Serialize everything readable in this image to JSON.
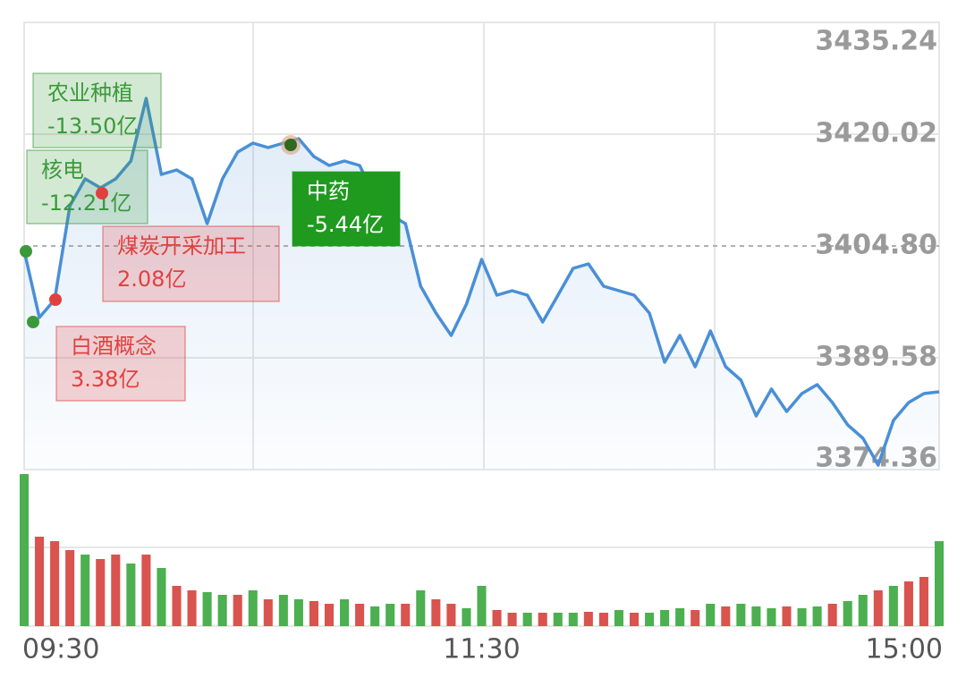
{
  "chart_data": [
    {
      "type": "line",
      "categories": [
        "09:30",
        null,
        null,
        null,
        null,
        null,
        null,
        null,
        null,
        null,
        null,
        null,
        null,
        null,
        null,
        null,
        null,
        null,
        null,
        null,
        null,
        null,
        null,
        null,
        null,
        null,
        null,
        null,
        null,
        null,
        "11:30",
        null,
        null,
        null,
        null,
        null,
        null,
        null,
        null,
        null,
        null,
        null,
        null,
        null,
        null,
        null,
        null,
        null,
        null,
        null,
        null,
        null,
        null,
        null,
        null,
        null,
        null,
        null,
        null,
        null,
        "15:00"
      ],
      "values": [
        3404.19,
        3395.06,
        3397.49,
        3410.28,
        3413.93,
        3412.71,
        3413.93,
        3416.37,
        3424.89,
        3414.54,
        3415.15,
        3413.93,
        3407.84,
        3413.93,
        3417.58,
        3418.8,
        3418.19,
        3418.8,
        3419.41,
        3416.98,
        3415.76,
        3416.37,
        3415.76,
        3411.5,
        3409.06,
        3407.84,
        3399.32,
        3395.67,
        3392.62,
        3396.89,
        3402.97,
        3398.1,
        3398.71,
        3398.1,
        3394.45,
        3398.1,
        3401.76,
        3402.36,
        3399.32,
        3398.71,
        3398.1,
        3395.67,
        3388.97,
        3392.62,
        3388.36,
        3393.23,
        3388.36,
        3386.54,
        3381.67,
        3385.32,
        3382.27,
        3384.71,
        3385.93,
        3383.49,
        3380.45,
        3378.62,
        3374.97,
        3381.06,
        3383.49,
        3384.71,
        3384.95
      ],
      "color": "#4a8fd6",
      "ylim": [
        3374.36,
        3435.24
      ],
      "yticks": [
        3374.36,
        3389.58,
        {
          "value": 3404.8,
          "label": "3404.80"
        },
        3420.02,
        3435.24
      ],
      "grid": true,
      "annotations": [
        {
          "label": "农业种植",
          "text": "-13.50亿",
          "color": "#3a9a3a"
        },
        {
          "label": "核电",
          "text": "-12.21亿",
          "color": "#3a9a3a"
        },
        {
          "label": "煤炭开采加工",
          "text": "2.08亿",
          "color": "#e0413f"
        },
        {
          "label": "白酒概念",
          "text": "3.38亿",
          "color": "#e0413f"
        },
        {
          "label": "中药",
          "text": "-5.44亿",
          "color": "#1f9a1f"
        }
      ]
    },
    {
      "type": "bar",
      "values": [
        170,
        100,
        95,
        85,
        80,
        75,
        80,
        70,
        80,
        65,
        45,
        40,
        38,
        35,
        35,
        40,
        30,
        35,
        30,
        28,
        25,
        30,
        25,
        22,
        25,
        25,
        40,
        30,
        25,
        20,
        45,
        18,
        15,
        15,
        15,
        15,
        15,
        16,
        15,
        18,
        15,
        15,
        18,
        20,
        18,
        25,
        22,
        25,
        22,
        20,
        22,
        20,
        22,
        25,
        28,
        35,
        40,
        45,
        50,
        55,
        95
      ],
      "colors": [
        "#4caf50",
        "#d9534f",
        "#d9534f",
        "#d9534f",
        "#4caf50",
        "#d9534f",
        "#d9534f",
        "#4caf50",
        "#d9534f",
        "#4caf50",
        "#d9534f",
        "#d9534f",
        "#4caf50",
        "#4caf50",
        "#d9534f",
        "#4caf50",
        "#d9534f",
        "#4caf50",
        "#4caf50",
        "#d9534f",
        "#d9534f",
        "#4caf50",
        "#d9534f",
        "#4caf50",
        "#4caf50",
        "#d9534f",
        "#4caf50",
        "#d9534f",
        "#d9534f",
        "#4caf50",
        "#4caf50",
        "#d9534f",
        "#d9534f",
        "#4caf50",
        "#d9534f",
        "#4caf50",
        "#4caf50",
        "#d9534f",
        "#d9534f",
        "#4caf50",
        "#d9534f",
        "#4caf50",
        "#4caf50",
        "#4caf50",
        "#d9534f",
        "#4caf50",
        "#d9534f",
        "#4caf50",
        "#4caf50",
        "#4caf50",
        "#d9534f",
        "#4caf50",
        "#4caf50",
        "#d9534f",
        "#4caf50",
        "#4caf50",
        "#d9534f",
        "#4caf50",
        "#d9534f",
        "#d9534f",
        "#4caf50"
      ],
      "ylim": [
        0,
        175
      ]
    }
  ]
}
